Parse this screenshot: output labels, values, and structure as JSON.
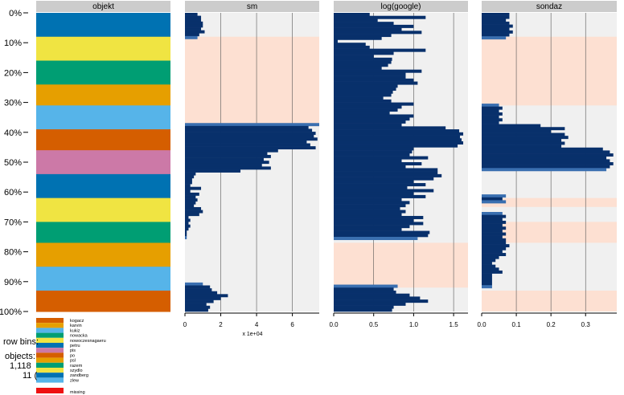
{
  "chart_data": {
    "type": "tableplot",
    "sort_indicator": "▼",
    "row_labels": [
      "0%",
      "10%",
      "20%",
      "30%",
      "40%",
      "50%",
      "60%",
      "70%",
      "80%",
      "90%",
      "100%"
    ],
    "side_text": {
      "row_bins": "row bins:",
      "objects": "objects:",
      "objects_count": "1,118",
      "bin_size": "11 ("
    },
    "colors": {
      "bar": "#08306b",
      "bar_light": "#3a6fb0",
      "missing_band": "#fde0d2",
      "panel_bg": "#f0f0f0",
      "missing": "#ee1111"
    },
    "objekt": {
      "title": "objekt",
      "legend": [
        {
          "name": "kogacz",
          "color": "#d55e00"
        },
        {
          "name": "karvin",
          "color": "#e69f00"
        },
        {
          "name": "kukiz",
          "color": "#56b4e9"
        },
        {
          "name": "nowacka",
          "color": "#009e73"
        },
        {
          "name": "nowoczesnagaeru",
          "color": "#f0e442"
        },
        {
          "name": "petru",
          "color": "#0072b2"
        },
        {
          "name": "pis",
          "color": "#cc79a7"
        },
        {
          "name": "po",
          "color": "#d55e00"
        },
        {
          "name": "psl",
          "color": "#e69f00"
        },
        {
          "name": "razem",
          "color": "#009e73"
        },
        {
          "name": "szydlo",
          "color": "#f0e442"
        },
        {
          "name": "zandberg",
          "color": "#0072b2"
        },
        {
          "name": "zlew",
          "color": "#56b4e9"
        }
      ],
      "missing_label": "missing",
      "bands": [
        {
          "color": "#0072b2",
          "start": 0,
          "end": 8
        },
        {
          "color": "#f0e442",
          "start": 8,
          "end": 16
        },
        {
          "color": "#009e73",
          "start": 16,
          "end": 24
        },
        {
          "color": "#e69f00",
          "start": 24,
          "end": 31
        },
        {
          "color": "#56b4e9",
          "start": 31,
          "end": 39
        },
        {
          "color": "#d55e00",
          "start": 39,
          "end": 46
        },
        {
          "color": "#cc79a7",
          "start": 46,
          "end": 54
        },
        {
          "color": "#0072b2",
          "start": 54,
          "end": 62
        },
        {
          "color": "#f0e442",
          "start": 62,
          "end": 70
        },
        {
          "color": "#009e73",
          "start": 70,
          "end": 77
        },
        {
          "color": "#e69f00",
          "start": 77,
          "end": 85
        },
        {
          "color": "#56b4e9",
          "start": 85,
          "end": 93
        },
        {
          "color": "#d55e00",
          "start": 93,
          "end": 100
        }
      ]
    },
    "sm": {
      "title": "sm",
      "xlim": [
        0,
        7.5
      ],
      "ticks": [
        "0",
        "2",
        "4",
        "6"
      ],
      "tick_values": [
        0,
        2,
        4,
        6
      ],
      "multiplier": "x 1e+04",
      "missing_ranges": [
        [
          8,
          38
        ]
      ],
      "values": [
        0.7,
        0.9,
        0.9,
        1.0,
        1.0,
        0.9,
        1.1,
        0.8,
        0.7,
        0,
        0,
        0,
        0,
        0,
        0,
        0,
        0,
        0,
        0,
        0,
        0,
        0,
        0,
        0,
        0,
        0,
        0,
        0,
        0,
        0,
        0,
        0,
        0,
        0,
        0,
        0,
        0,
        0,
        7.5,
        6.9,
        7.1,
        7.3,
        7.2,
        7.4,
        6.8,
        7.0,
        7.3,
        5.2,
        4.6,
        4.8,
        4.4,
        4.7,
        4.3,
        4.8,
        3.1,
        0.6,
        0.5,
        0.4,
        0.4,
        0.3,
        0.9,
        0.3,
        0.8,
        0.6,
        0.7,
        0.6,
        0.5,
        0.9,
        1.0,
        0.8,
        0.2,
        0.3,
        0.2,
        0.3,
        0.2,
        0.1,
        0.1,
        0.1,
        0,
        0,
        0,
        0,
        0,
        0,
        0,
        0,
        0,
        0,
        0,
        0,
        0,
        0,
        0,
        1.0,
        1.4,
        1.5,
        1.8,
        2.4,
        2.0,
        1.6,
        1.2,
        1.4,
        1.3
      ]
    },
    "google": {
      "title": "log(google)",
      "xlim": [
        0,
        1.68
      ],
      "ticks": [
        "0.0",
        "0.5",
        "1.0",
        "1.5"
      ],
      "tick_values": [
        0,
        0.5,
        1.0,
        1.5
      ],
      "missing_ranges": [
        [
          77,
          92
        ]
      ],
      "values": [
        0.45,
        1.15,
        0.55,
        0.75,
        1.0,
        0.85,
        1.1,
        0.72,
        0.6,
        0.05,
        0.4,
        0.45,
        1.15,
        0.75,
        0.5,
        0.73,
        0.72,
        0.68,
        0.6,
        1.1,
        0.9,
        0.9,
        1.0,
        1.05,
        0.8,
        0.78,
        0.74,
        0.72,
        0.62,
        0.72,
        1.0,
        0.85,
        0.8,
        0.7,
        1.0,
        0.95,
        0.9,
        0.85,
        1.4,
        1.57,
        1.62,
        1.58,
        1.6,
        1.62,
        1.55,
        1.0,
        0.98,
        0.95,
        1.18,
        0.85,
        1.1,
        0.9,
        1.3,
        1.3,
        1.35,
        1.25,
        1.0,
        1.15,
        0.92,
        1.25,
        1.0,
        1.15,
        0.85,
        0.95,
        0.9,
        0.83,
        0.9,
        0.85,
        1.12,
        1.0,
        1.12,
        0.95,
        0.85,
        1.2,
        1.18,
        1.05,
        0,
        0,
        0,
        0,
        0,
        0,
        0,
        0,
        0,
        0,
        0,
        0,
        0,
        0,
        0,
        0.8,
        0.75,
        0.78,
        0.95,
        1.08,
        1.18,
        0.9,
        0.75,
        0.73
      ]
    },
    "sondaz": {
      "title": "sondaz",
      "xlim": [
        0,
        0.39
      ],
      "ticks": [
        "0.0",
        "0.1",
        "0.2",
        "0.3"
      ],
      "tick_values": [
        0,
        0.1,
        0.2,
        0.3
      ],
      "missing_ranges": [
        [
          8,
          31
        ],
        [
          62,
          65
        ],
        [
          70,
          77
        ],
        [
          93,
          100
        ]
      ],
      "values": [
        0.08,
        0.08,
        0.07,
        0.08,
        0.09,
        0.08,
        0.09,
        0.08,
        0.07,
        0,
        0,
        0,
        0,
        0,
        0,
        0,
        0,
        0,
        0,
        0,
        0,
        0,
        0,
        0,
        0,
        0,
        0,
        0,
        0,
        0,
        0,
        0.05,
        0.06,
        0.05,
        0.06,
        0.05,
        0.06,
        0.05,
        0.17,
        0.24,
        0.2,
        0.24,
        0.25,
        0.23,
        0.24,
        0.23,
        0.35,
        0.37,
        0.38,
        0.36,
        0.37,
        0.38,
        0.37,
        0.36,
        0,
        0,
        0,
        0,
        0,
        0,
        0,
        0,
        0.07,
        0.06,
        0.07,
        0,
        0,
        0,
        0.06,
        0.07,
        0.06,
        0.07,
        0.06,
        0.07,
        0.06,
        0.07,
        0.06,
        0.07,
        0.07,
        0.08,
        0.07,
        0.06,
        0.07,
        0.05,
        0.04,
        0.03,
        0.04,
        0.05,
        0.06,
        0.03,
        0.03,
        0.03,
        0.03,
        0.03,
        0,
        0,
        0,
        0,
        0,
        0,
        0,
        0
      ]
    }
  }
}
